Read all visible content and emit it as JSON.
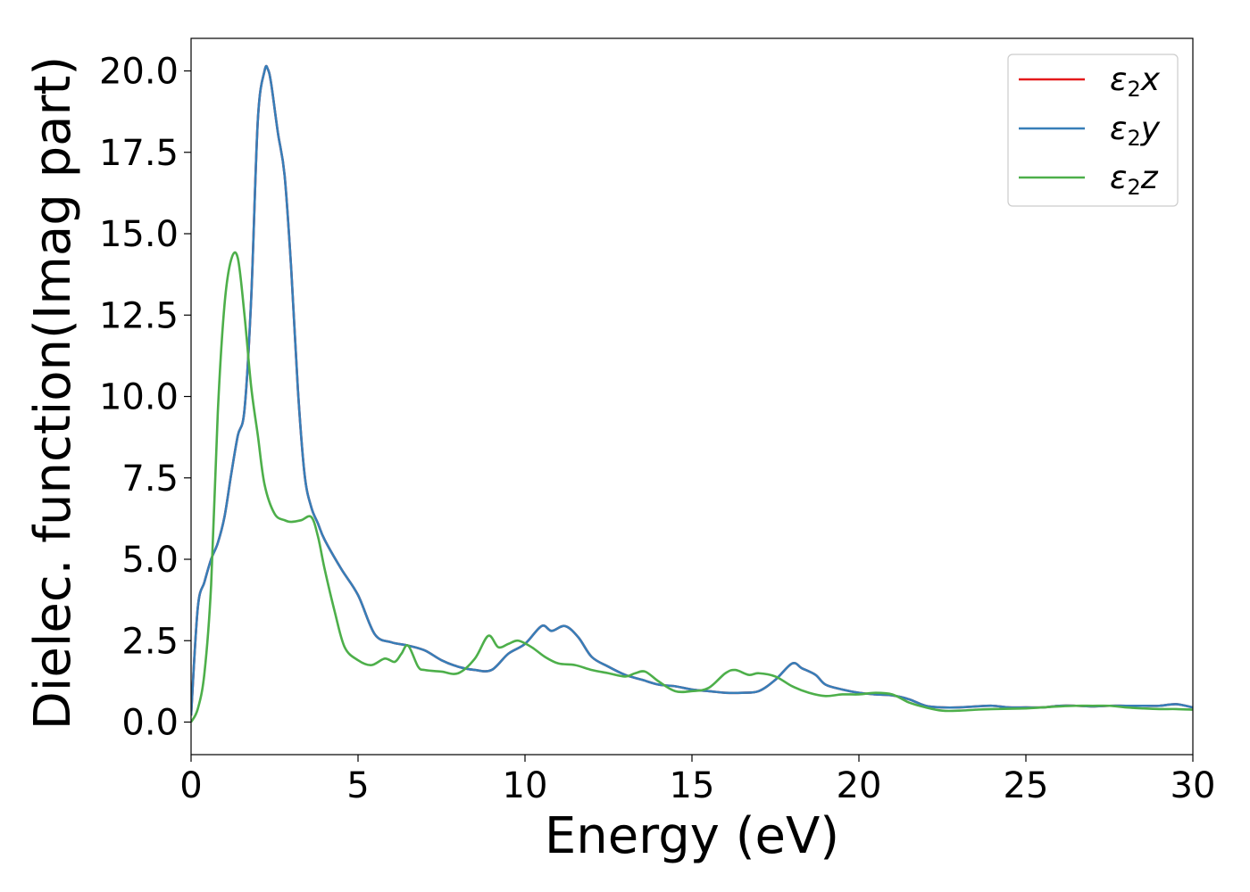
{
  "chart_data": {
    "type": "line",
    "title": "",
    "xlabel": "Energy (eV)",
    "ylabel": "Dielec. function(Imag part)",
    "xlim": [
      0,
      30
    ],
    "ylim": [
      -1.0,
      21.0
    ],
    "xticks": [
      0,
      5,
      10,
      15,
      20,
      25,
      30
    ],
    "xtick_labels": [
      "0",
      "5",
      "10",
      "15",
      "20",
      "25",
      "30"
    ],
    "yticks": [
      0.0,
      2.5,
      5.0,
      7.5,
      10.0,
      12.5,
      15.0,
      17.5,
      20.0
    ],
    "ytick_labels": [
      "0.0",
      "2.5",
      "5.0",
      "7.5",
      "10.0",
      "12.5",
      "15.0",
      "17.5",
      "20.0"
    ],
    "grid": false,
    "legend": {
      "position": "top-right",
      "entries": [
        {
          "base": "ε",
          "sub": "2",
          "var": "x",
          "color": "#e41a1c"
        },
        {
          "base": "ε",
          "sub": "2",
          "var": "y",
          "color": "#377eb8"
        },
        {
          "base": "ε",
          "sub": "2",
          "var": "z",
          "color": "#4daf4a"
        }
      ]
    },
    "series": [
      {
        "name": "ε2x",
        "color": "#e41a1c",
        "x": [
          0,
          0.2,
          0.4,
          0.6,
          0.8,
          1.0,
          1.2,
          1.4,
          1.6,
          1.8,
          2.0,
          2.2,
          2.3,
          2.4,
          2.6,
          2.8,
          3.0,
          3.2,
          3.4,
          3.6,
          3.8,
          4.0,
          4.5,
          5.0,
          5.5,
          6.0,
          6.5,
          7.0,
          7.5,
          8.0,
          8.5,
          9.0,
          9.5,
          10.0,
          10.5,
          10.8,
          11.2,
          11.6,
          12.0,
          12.5,
          13.0,
          13.5,
          14.0,
          14.5,
          15.0,
          15.5,
          16.0,
          16.5,
          17.0,
          17.5,
          18.0,
          18.3,
          18.7,
          19.0,
          19.5,
          20.0,
          20.5,
          21.0,
          21.5,
          22.0,
          22.5,
          23.0,
          23.5,
          24.0,
          24.5,
          25.0,
          25.5,
          26.0,
          26.5,
          27.0,
          27.5,
          28.0,
          28.5,
          29.0,
          29.5,
          30.0
        ],
        "y": [
          0.2,
          3.5,
          4.3,
          5.0,
          5.5,
          6.3,
          7.6,
          8.8,
          9.6,
          13.0,
          18.5,
          20.0,
          20.05,
          19.6,
          18.1,
          16.8,
          13.9,
          10.2,
          7.6,
          6.6,
          6.1,
          5.6,
          4.7,
          3.9,
          2.7,
          2.45,
          2.35,
          2.2,
          1.9,
          1.7,
          1.6,
          1.6,
          2.1,
          2.4,
          2.95,
          2.8,
          2.95,
          2.6,
          2.0,
          1.7,
          1.45,
          1.3,
          1.15,
          1.1,
          1.0,
          0.95,
          0.9,
          0.9,
          0.95,
          1.3,
          1.8,
          1.65,
          1.45,
          1.15,
          1.0,
          0.9,
          0.85,
          0.82,
          0.7,
          0.5,
          0.45,
          0.45,
          0.48,
          0.5,
          0.45,
          0.45,
          0.45,
          0.5,
          0.5,
          0.48,
          0.5,
          0.5,
          0.5,
          0.5,
          0.55,
          0.45
        ]
      },
      {
        "name": "ε2y",
        "color": "#377eb8",
        "x": [
          0,
          0.2,
          0.4,
          0.6,
          0.8,
          1.0,
          1.2,
          1.4,
          1.6,
          1.8,
          2.0,
          2.2,
          2.3,
          2.4,
          2.6,
          2.8,
          3.0,
          3.2,
          3.4,
          3.6,
          3.8,
          4.0,
          4.5,
          5.0,
          5.5,
          6.0,
          6.5,
          7.0,
          7.5,
          8.0,
          8.5,
          9.0,
          9.5,
          10.0,
          10.5,
          10.8,
          11.2,
          11.6,
          12.0,
          12.5,
          13.0,
          13.5,
          14.0,
          14.5,
          15.0,
          15.5,
          16.0,
          16.5,
          17.0,
          17.5,
          18.0,
          18.3,
          18.7,
          19.0,
          19.5,
          20.0,
          20.5,
          21.0,
          21.5,
          22.0,
          22.5,
          23.0,
          23.5,
          24.0,
          24.5,
          25.0,
          25.5,
          26.0,
          26.5,
          27.0,
          27.5,
          28.0,
          28.5,
          29.0,
          29.5,
          30.0
        ],
        "y": [
          0.2,
          3.5,
          4.3,
          5.0,
          5.5,
          6.3,
          7.6,
          8.8,
          9.6,
          13.0,
          18.5,
          20.0,
          20.05,
          19.6,
          18.1,
          16.8,
          13.9,
          10.2,
          7.6,
          6.6,
          6.1,
          5.6,
          4.7,
          3.9,
          2.7,
          2.45,
          2.35,
          2.2,
          1.9,
          1.7,
          1.6,
          1.6,
          2.1,
          2.4,
          2.95,
          2.8,
          2.95,
          2.6,
          2.0,
          1.7,
          1.45,
          1.3,
          1.15,
          1.1,
          1.0,
          0.95,
          0.9,
          0.9,
          0.95,
          1.3,
          1.8,
          1.65,
          1.45,
          1.15,
          1.0,
          0.9,
          0.85,
          0.82,
          0.7,
          0.5,
          0.45,
          0.45,
          0.48,
          0.5,
          0.45,
          0.45,
          0.45,
          0.5,
          0.5,
          0.48,
          0.5,
          0.5,
          0.5,
          0.5,
          0.55,
          0.45
        ]
      },
      {
        "name": "ε2z",
        "color": "#4daf4a",
        "x": [
          0,
          0.2,
          0.4,
          0.6,
          0.8,
          1.0,
          1.2,
          1.4,
          1.6,
          1.8,
          2.0,
          2.2,
          2.5,
          2.8,
          3.0,
          3.3,
          3.6,
          3.8,
          4.0,
          4.3,
          4.6,
          5.0,
          5.4,
          5.8,
          6.1,
          6.3,
          6.5,
          6.8,
          7.0,
          7.5,
          8.0,
          8.5,
          8.9,
          9.2,
          9.5,
          9.8,
          10.2,
          10.6,
          11.0,
          11.5,
          12.0,
          12.5,
          13.0,
          13.3,
          13.6,
          14.0,
          14.5,
          15.0,
          15.5,
          16.0,
          16.3,
          16.7,
          17.0,
          17.5,
          18.0,
          18.5,
          19.0,
          19.5,
          20.0,
          20.5,
          21.0,
          21.5,
          22.0,
          22.5,
          23.0,
          23.5,
          24.0,
          25.0,
          25.5,
          26.0,
          26.5,
          27.0,
          27.5,
          28.0,
          28.5,
          29.0,
          29.5,
          30.0
        ],
        "y": [
          0.0,
          0.4,
          1.5,
          4.2,
          9.5,
          12.8,
          14.2,
          14.25,
          12.5,
          10.3,
          8.8,
          7.3,
          6.4,
          6.2,
          6.15,
          6.2,
          6.3,
          5.7,
          4.7,
          3.4,
          2.3,
          1.9,
          1.75,
          1.95,
          1.85,
          2.1,
          2.35,
          1.7,
          1.6,
          1.55,
          1.5,
          1.95,
          2.65,
          2.3,
          2.4,
          2.5,
          2.3,
          2.0,
          1.8,
          1.75,
          1.6,
          1.5,
          1.4,
          1.5,
          1.55,
          1.25,
          0.95,
          0.95,
          1.05,
          1.5,
          1.6,
          1.45,
          1.5,
          1.4,
          1.1,
          0.9,
          0.8,
          0.85,
          0.85,
          0.9,
          0.85,
          0.6,
          0.45,
          0.35,
          0.35,
          0.38,
          0.4,
          0.42,
          0.45,
          0.48,
          0.5,
          0.5,
          0.5,
          0.45,
          0.42,
          0.4,
          0.4,
          0.38
        ]
      }
    ]
  }
}
